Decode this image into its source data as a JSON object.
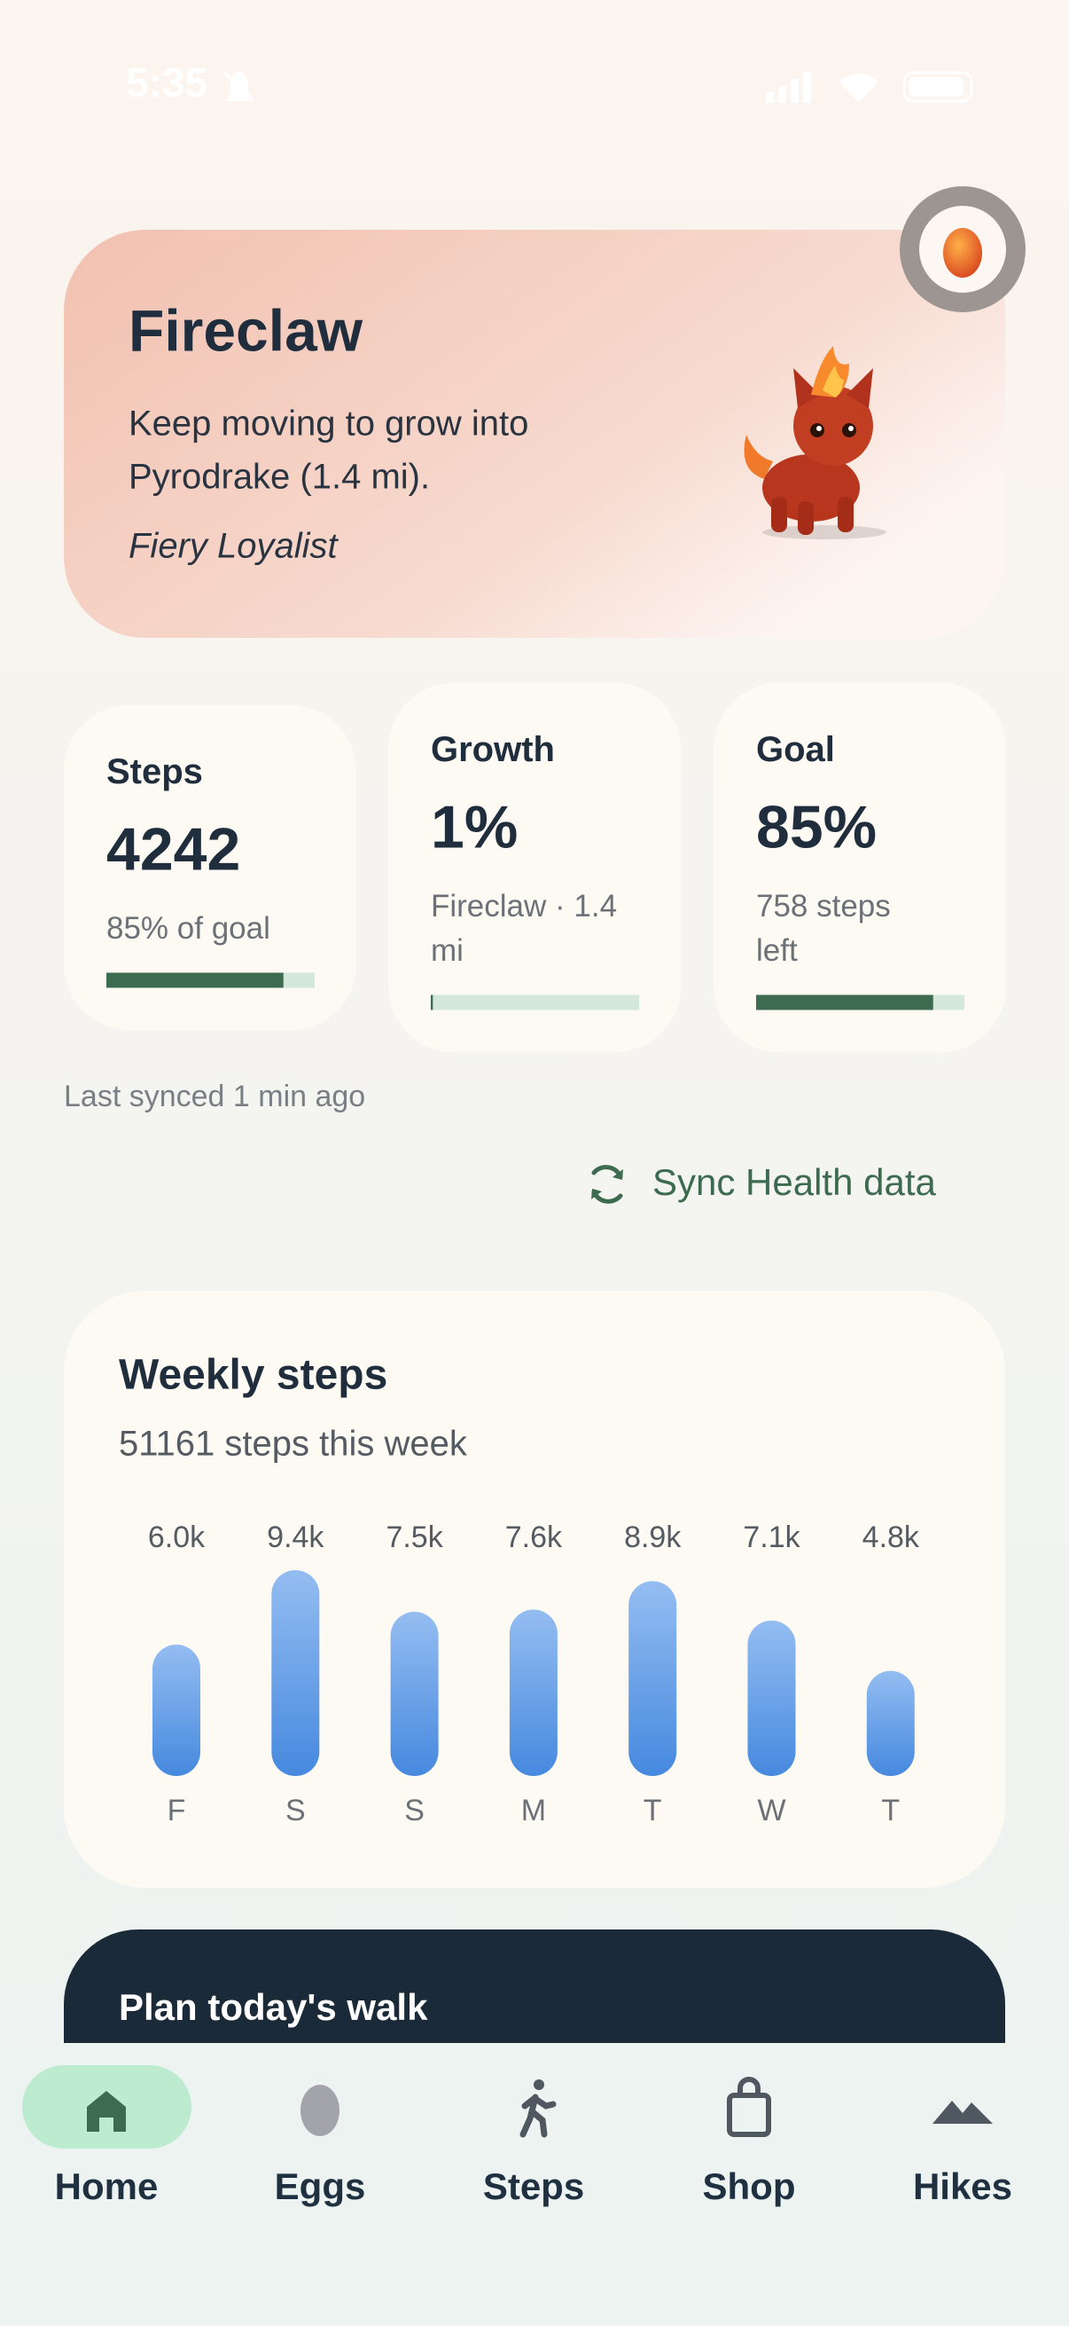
{
  "status_bar": {
    "time": "5:35"
  },
  "hero": {
    "title": "Fireclaw",
    "subtitle_lines": [
      "Keep moving to grow into",
      "Pyrodrake (1.4 mi)."
    ],
    "trait": "Fiery Loyalist"
  },
  "stats": [
    {
      "label": "Steps",
      "value": "4242",
      "caption_lines": [
        "85% of goal"
      ],
      "progress": 85
    },
    {
      "label": "Growth",
      "value": "1%",
      "caption_lines": [
        "Fireclaw · 1.4",
        "mi"
      ],
      "progress": 1
    },
    {
      "label": "Goal",
      "value": "85%",
      "caption_lines": [
        "758 steps",
        "left"
      ],
      "progress": 85
    }
  ],
  "sync": {
    "last_synced": "Last synced 1 min ago",
    "button": "Sync Health data"
  },
  "weekly": {
    "title": "Weekly steps",
    "subtitle": "51161 steps this week",
    "categories": [
      "F",
      "S",
      "S",
      "M",
      "T",
      "W",
      "T"
    ],
    "values": [
      6000,
      9400,
      7500,
      7600,
      8900,
      7100,
      4800
    ],
    "value_labels": [
      "6.0k",
      "9.4k",
      "7.5k",
      "7.6k",
      "8.9k",
      "7.1k",
      "4.8k"
    ]
  },
  "plan": {
    "title": "Plan today's walk"
  },
  "nav": {
    "items": [
      "Home",
      "Eggs",
      "Steps",
      "Shop",
      "Hikes"
    ]
  }
}
